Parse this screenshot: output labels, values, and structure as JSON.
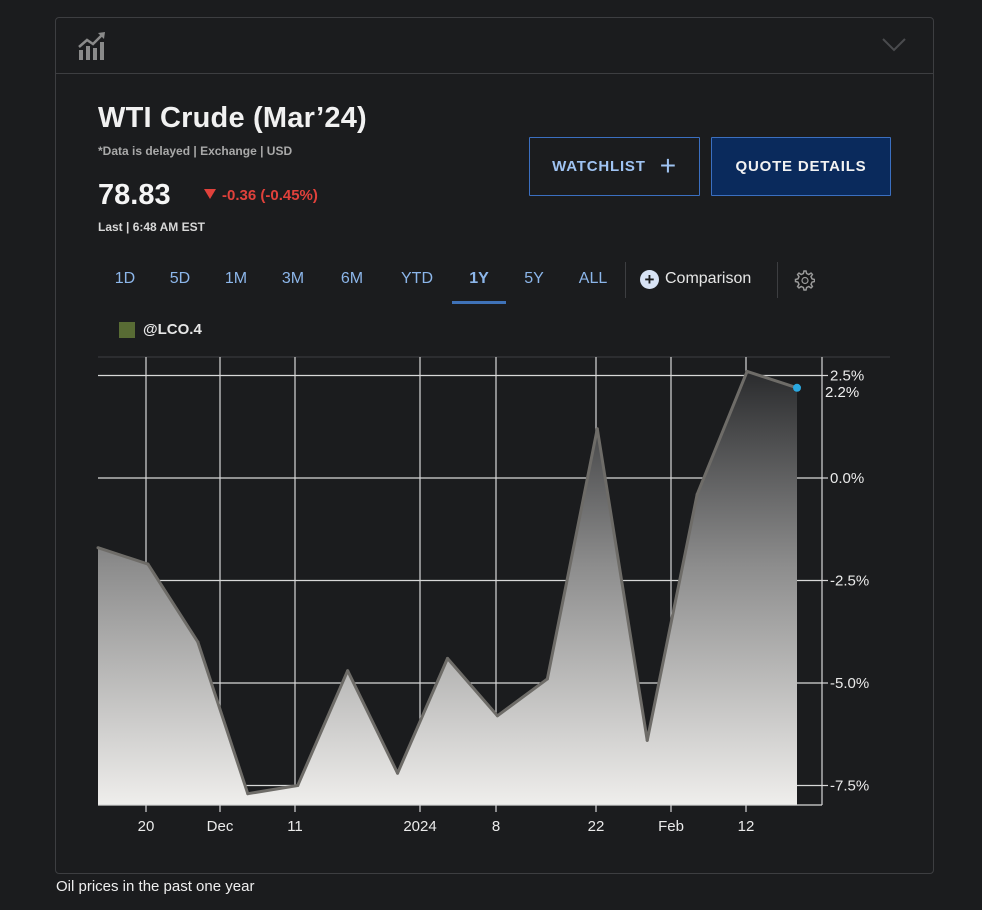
{
  "header": {
    "icon": "line-chart-icon",
    "collapse_icon": "chevron-down-icon"
  },
  "quote": {
    "title": "WTI Crude (Mar’24)",
    "note": "*Data is delayed | Exchange | USD",
    "price": "78.83",
    "change": "-0.36 (-0.45%)",
    "last": "Last | 6:48 AM EST"
  },
  "buttons": {
    "watchlist": "WATCHLIST",
    "quote_details": "QUOTE DETAILS"
  },
  "tabs": [
    "1D",
    "5D",
    "1M",
    "3M",
    "6M",
    "YTD",
    "1Y",
    "5Y",
    "ALL"
  ],
  "active_tab": "1Y",
  "comparison_label": "Comparison",
  "legend_label": "@LCO.4",
  "colors": {
    "legend_swatch": "#586b34",
    "change_down": "#e0413b",
    "accent": "#3b6fc0",
    "last_point": "#2aa8e0"
  },
  "chart_data": {
    "type": "area",
    "series": [
      {
        "name": "@LCO.4",
        "values": [
          -1.7,
          -2.1,
          -4.0,
          -7.7,
          -7.5,
          -4.7,
          -7.2,
          -4.4,
          -5.8,
          -4.9,
          1.2,
          -6.4,
          -0.4,
          2.6,
          2.2
        ]
      }
    ],
    "x_ticks": [
      "20",
      "Dec",
      "11",
      "2024",
      "8",
      "22",
      "Feb",
      "12"
    ],
    "y_ticks": [
      "2.5%",
      "0.0%",
      "-2.5%",
      "-5.0%",
      "-7.5%"
    ],
    "last_value_label": "2.2%",
    "ylim": [
      -8.0,
      2.5
    ],
    "grid": true
  },
  "caption": "Oil prices in the past one year"
}
